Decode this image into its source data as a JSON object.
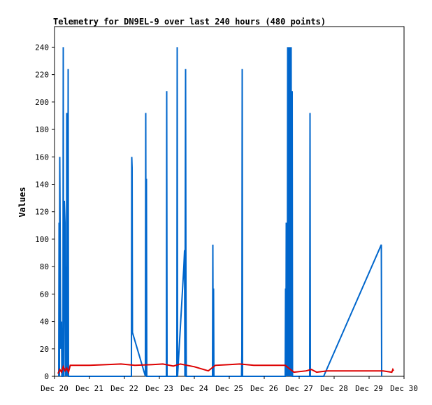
{
  "chart_data": {
    "type": "line",
    "title": "Telemetry for DN9EL-9 over last 240 hours (480 points)",
    "xlabel": "",
    "ylabel": "Values",
    "x_ticks": [
      "Dec 20",
      "Dec 21",
      "Dec 22",
      "Dec 23",
      "Dec 24",
      "Dec 25",
      "Dec 26",
      "Dec 27",
      "Dec 28",
      "Dec 29",
      "Dec 30"
    ],
    "xlim": [
      0,
      10
    ],
    "ylim": [
      0,
      255
    ],
    "y_ticks": [
      0,
      20,
      40,
      60,
      80,
      100,
      120,
      140,
      160,
      180,
      200,
      220,
      240
    ],
    "grid": false,
    "legend": "none",
    "series": [
      {
        "color": "#0066cc",
        "points": [
          [
            0.12,
            0
          ],
          [
            0.13,
            112
          ],
          [
            0.14,
            0
          ],
          [
            0.15,
            160
          ],
          [
            0.16,
            112
          ],
          [
            0.17,
            64
          ],
          [
            0.18,
            20
          ],
          [
            0.2,
            40
          ],
          [
            0.21,
            0
          ],
          [
            0.24,
            0
          ],
          [
            0.25,
            240
          ],
          [
            0.26,
            0
          ],
          [
            0.28,
            128
          ],
          [
            0.3,
            112
          ],
          [
            0.31,
            0
          ],
          [
            0.33,
            80
          ],
          [
            0.34,
            0
          ],
          [
            0.35,
            192
          ],
          [
            0.36,
            0
          ],
          [
            0.37,
            160
          ],
          [
            0.38,
            20
          ],
          [
            0.39,
            224
          ],
          [
            0.4,
            0
          ],
          [
            2.2,
            0
          ],
          [
            2.21,
            160
          ],
          [
            2.22,
            152
          ],
          [
            2.23,
            32
          ],
          [
            2.6,
            0
          ],
          [
            2.61,
            192
          ],
          [
            2.62,
            0
          ],
          [
            2.63,
            144
          ],
          [
            2.64,
            0
          ],
          [
            3.2,
            0
          ],
          [
            3.21,
            208
          ],
          [
            3.22,
            0
          ],
          [
            3.5,
            0
          ],
          [
            3.51,
            240
          ],
          [
            3.52,
            0
          ],
          [
            3.7,
            80
          ],
          [
            3.72,
            92
          ],
          [
            3.73,
            0
          ],
          [
            3.75,
            224
          ],
          [
            3.76,
            72
          ],
          [
            3.77,
            0
          ],
          [
            4.52,
            0
          ],
          [
            4.53,
            96
          ],
          [
            4.54,
            0
          ],
          [
            4.55,
            64
          ],
          [
            4.56,
            0
          ],
          [
            5.35,
            0
          ],
          [
            5.36,
            16
          ],
          [
            5.37,
            224
          ],
          [
            5.38,
            0
          ],
          [
            6.6,
            0
          ],
          [
            6.61,
            64
          ],
          [
            6.62,
            0
          ],
          [
            6.63,
            112
          ],
          [
            6.64,
            0
          ],
          [
            6.65,
            88
          ],
          [
            6.66,
            0
          ],
          [
            6.67,
            240
          ],
          [
            6.68,
            0
          ],
          [
            6.7,
            240
          ],
          [
            6.71,
            0
          ],
          [
            6.73,
            240
          ],
          [
            6.74,
            0
          ],
          [
            6.76,
            80
          ],
          [
            6.77,
            240
          ],
          [
            6.78,
            0
          ],
          [
            6.8,
            208
          ],
          [
            6.81,
            0
          ],
          [
            7.3,
            0
          ],
          [
            7.31,
            192
          ],
          [
            7.32,
            0
          ],
          [
            7.7,
            0
          ],
          [
            9.35,
            96
          ],
          [
            9.36,
            0
          ]
        ]
      },
      {
        "color": "#dd0000",
        "points": [
          [
            0.1,
            2
          ],
          [
            0.15,
            5
          ],
          [
            0.2,
            3
          ],
          [
            0.25,
            7
          ],
          [
            0.3,
            4
          ],
          [
            0.35,
            6
          ],
          [
            0.4,
            3
          ],
          [
            0.45,
            8
          ],
          [
            1.0,
            8
          ],
          [
            1.5,
            8.5
          ],
          [
            1.9,
            9
          ],
          [
            2.3,
            8
          ],
          [
            2.8,
            8.5
          ],
          [
            3.1,
            9
          ],
          [
            3.4,
            7.5
          ],
          [
            3.6,
            9
          ],
          [
            4.0,
            7
          ],
          [
            4.4,
            4
          ],
          [
            4.6,
            8
          ],
          [
            5.0,
            8.5
          ],
          [
            5.3,
            9
          ],
          [
            5.7,
            8
          ],
          [
            6.2,
            8
          ],
          [
            6.6,
            8
          ],
          [
            6.85,
            3
          ],
          [
            7.2,
            4
          ],
          [
            7.35,
            5
          ],
          [
            7.5,
            3
          ],
          [
            7.8,
            4
          ],
          [
            8.2,
            4
          ],
          [
            8.6,
            4
          ],
          [
            9.0,
            4
          ],
          [
            9.4,
            4
          ],
          [
            9.65,
            3
          ],
          [
            9.68,
            5
          ],
          [
            9.7,
            4
          ]
        ]
      }
    ]
  }
}
